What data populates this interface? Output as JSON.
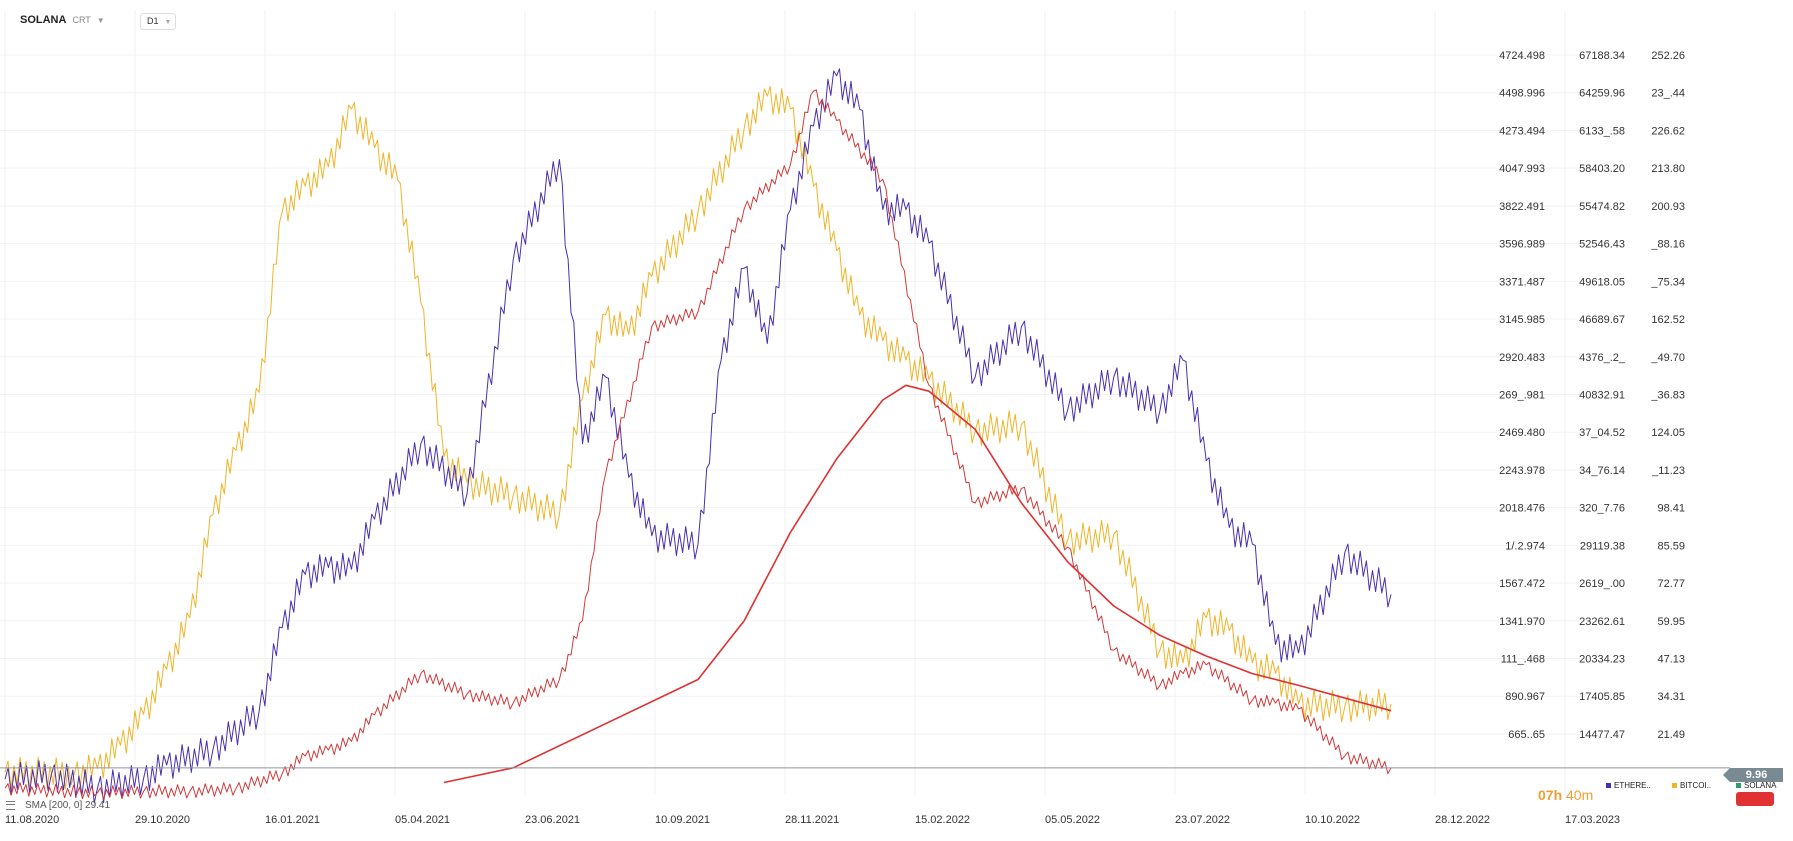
{
  "header": {
    "symbol": "SOLANA",
    "subtitle": "CRT",
    "timeframe": "D1"
  },
  "indicator": {
    "label": "SMA [200, 0] 29.41"
  },
  "timer": {
    "hours": "07h",
    "minutes": "40m"
  },
  "current_price_tag": "9.96",
  "colors": {
    "ethereum": "#4a2fb0",
    "bitcoin": "#f0b428",
    "solana_up": "#2a9d6f",
    "solana_down": "#d23a3a",
    "sma": "#e03030",
    "axis_text": "#333333"
  },
  "legend": [
    {
      "label": "ETHERE..",
      "color": "#4a2fb0"
    },
    {
      "label": "BITCOI..",
      "color": "#f0b428"
    },
    {
      "label": "SOLANA",
      "color": "#2a9d6f"
    }
  ],
  "chart_data": {
    "type": "line",
    "title": "SOLANA",
    "x_ticks": [
      "11.08.2020",
      "29.10.2020",
      "16.01.2021",
      "05.04.2021",
      "23.06.2021",
      "10.09.2021",
      "28.11.2021",
      "15.02.2022",
      "05.05.2022",
      "23.07.2022",
      "10.10.2022",
      "28.12.2022",
      "17.03.2023"
    ],
    "axes": {
      "ethereum": [
        "4724.498",
        "4498.996",
        "4273.494",
        "4047.993",
        "3822.491",
        "3596.989",
        "3371.487",
        "3145.985",
        "2920.483",
        "269_.981",
        "2469.480",
        "2243.978",
        "2018.476",
        "1/.2.974",
        "1567.472",
        "1341.970",
        "111_.468",
        "890.967",
        "665..65"
      ],
      "bitcoin": [
        "67188.34",
        "64259.96",
        "6133_.58",
        "58403.20",
        "55474.82",
        "52546.43",
        "49618.05",
        "46689.67",
        "4376_.2_",
        "40832.91",
        "37_04.52",
        "34_76.14",
        "320_7.76",
        "29119.38",
        "2619_.00",
        "23262.61",
        "20334.23",
        "17405.85",
        "14477.47"
      ],
      "solana": [
        "252.26",
        "23_.44",
        "226.62",
        "213.80",
        "200.93",
        "_88.16",
        "_75.34",
        "162.52",
        "_49.70",
        "_36.83",
        "124.05",
        "_11.23",
        "98.41",
        "85.59",
        "72.77",
        "59.95",
        "47.13",
        "34.31",
        "21.49"
      ]
    },
    "series": [
      {
        "name": "ETHERE..",
        "key": "ethereum",
        "x_index": [
          0,
          10,
          20,
          30,
          35,
          45,
          55,
          60,
          65,
          70,
          75,
          80,
          90,
          100,
          110,
          120,
          125,
          130,
          135,
          140,
          150,
          155,
          160,
          165,
          170,
          175,
          180,
          185,
          190,
          195,
          200,
          210,
          220,
          230,
          240,
          250,
          255,
          260,
          265,
          270,
          275,
          280,
          290,
          300
        ],
        "values": [
          395,
          420,
          340,
          400,
          480,
          570,
          800,
          1300,
          1620,
          1660,
          1650,
          1950,
          2400,
          2100,
          3500,
          4100,
          2400,
          2800,
          2200,
          1850,
          1800,
          2900,
          3450,
          3000,
          3800,
          4300,
          4600,
          4400,
          3800,
          3800,
          3600,
          2800,
          3100,
          2600,
          2800,
          2600,
          2900,
          2300,
          1900,
          1800,
          1200,
          1150,
          1750,
          1500
        ]
      },
      {
        "name": "BITCOI..",
        "key": "bitcoin",
        "x_index": [
          0,
          15,
          20,
          25,
          30,
          35,
          40,
          45,
          50,
          55,
          60,
          65,
          70,
          75,
          80,
          85,
          90,
          95,
          100,
          110,
          120,
          125,
          130,
          135,
          140,
          150,
          160,
          165,
          170,
          175,
          180,
          185,
          190,
          195,
          200,
          210,
          220,
          230,
          240,
          250,
          255,
          260,
          265,
          270,
          275,
          280,
          290,
          300
        ],
        "values": [
          11500,
          11400,
          11800,
          13600,
          16000,
          19500,
          23500,
          31500,
          36500,
          41000,
          55000,
          57000,
          58500,
          63000,
          60000,
          57500,
          48000,
          36000,
          34000,
          33000,
          31500,
          40500,
          47000,
          45500,
          50000,
          55000,
          61500,
          64000,
          63000,
          57000,
          52000,
          47000,
          45000,
          43500,
          42000,
          38000,
          38500,
          29500,
          30000,
          21000,
          20000,
          23500,
          22500,
          20000,
          19200,
          16800,
          16600,
          16800
        ]
      },
      {
        "name": "SOLANA",
        "key": "solana",
        "x_index": [
          0,
          20,
          30,
          40,
          50,
          60,
          65,
          70,
          75,
          80,
          90,
          100,
          110,
          120,
          125,
          130,
          140,
          150,
          160,
          170,
          175,
          180,
          190,
          200,
          210,
          220,
          230,
          240,
          250,
          255,
          260,
          270,
          275,
          280,
          290,
          300
        ],
        "values": [
          3,
          1.5,
          2,
          2,
          3,
          8,
          14,
          16,
          19,
          28,
          42,
          35,
          32,
          40,
          60,
          110,
          160,
          165,
          200,
          215,
          240,
          230,
          210,
          140,
          100,
          105,
          85,
          50,
          38,
          42,
          45,
          33,
          32,
          30,
          14,
          10
        ]
      },
      {
        "name": "SMA",
        "key": "sma",
        "x_index": [
          95,
          110,
          130,
          150,
          160,
          170,
          180,
          190,
          195,
          200,
          210,
          220,
          230,
          240,
          250,
          260,
          270,
          280,
          300
        ],
        "values": [
          5,
          10,
          25,
          40,
          60,
          90,
          115,
          135,
          140,
          138,
          125,
          100,
          80,
          65,
          55,
          48,
          42,
          38,
          29.41
        ]
      }
    ],
    "last_price": 9.96
  }
}
